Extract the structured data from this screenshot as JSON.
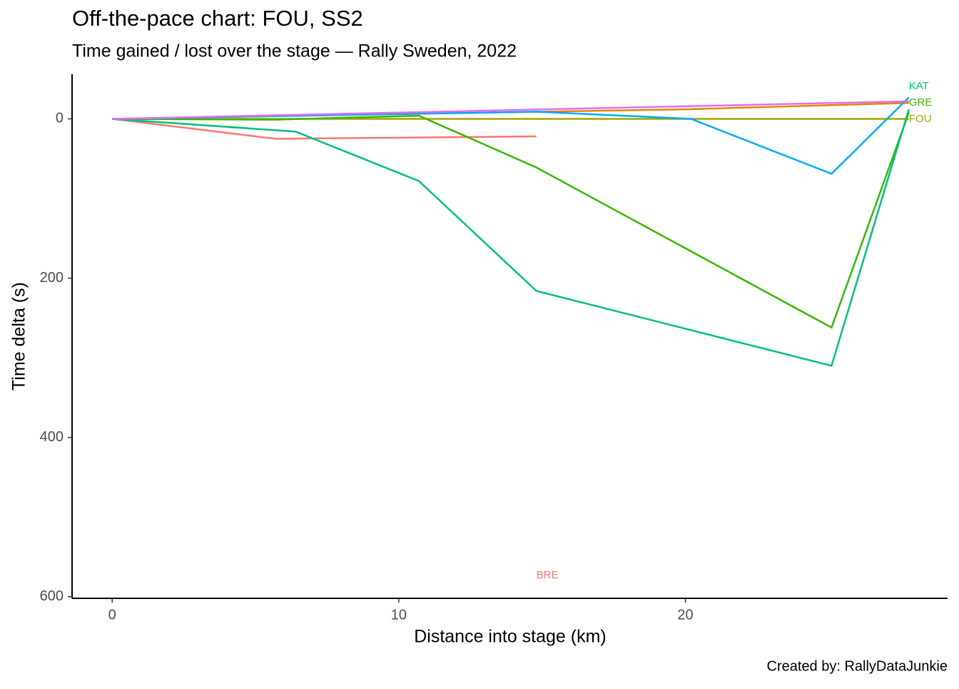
{
  "chart_data": {
    "type": "line",
    "title": "Off-the-pace chart: FOU, SS2",
    "subtitle": "Time gained / lost over the stage — Rally Sweden, 2022",
    "x_label": "Distance into stage (km)",
    "y_label": "Time delta (s)",
    "caption": "Created by: RallyDataJunkie",
    "xlim": [
      -1.4,
      29.15
    ],
    "xticks": [
      0,
      10,
      20
    ],
    "ylim": [
      -56,
      602
    ],
    "yticks": [
      0,
      200,
      400,
      600
    ],
    "y_reversed": true,
    "grid": false,
    "series": [
      {
        "name": "BRE",
        "color": "#f8766d",
        "x": [
          0,
          5.7,
          14.8
        ],
        "values": [
          0,
          25,
          22
        ]
      },
      {
        "name": "FOU",
        "color": "#a3a500",
        "x": [
          0,
          27.8
        ],
        "values": [
          0,
          0
        ]
      },
      {
        "name": "GRE",
        "color": "#39b600",
        "x": [
          0,
          5.7,
          10.7,
          14.8,
          25.1,
          27.8
        ],
        "values": [
          0,
          1,
          -4,
          61,
          262,
          -8
        ]
      },
      {
        "name": "KAT",
        "color": "#00bf7d",
        "x": [
          0,
          6.4,
          10.7,
          14.8,
          25.1,
          27.8
        ],
        "values": [
          0,
          16,
          78,
          216,
          310,
          -12
        ]
      },
      {
        "color": "#e58700",
        "x": [
          0,
          20,
          27.8
        ],
        "values": [
          0,
          -12,
          -20
        ]
      },
      {
        "color": "#00a9ff",
        "x": [
          0,
          14.8,
          20.2,
          25.1,
          27.8
        ],
        "values": [
          0,
          -9,
          0,
          69,
          -27
        ]
      },
      {
        "color": "#e76bf3",
        "x": [
          0,
          27.8
        ],
        "values": [
          0,
          -22
        ]
      }
    ]
  }
}
